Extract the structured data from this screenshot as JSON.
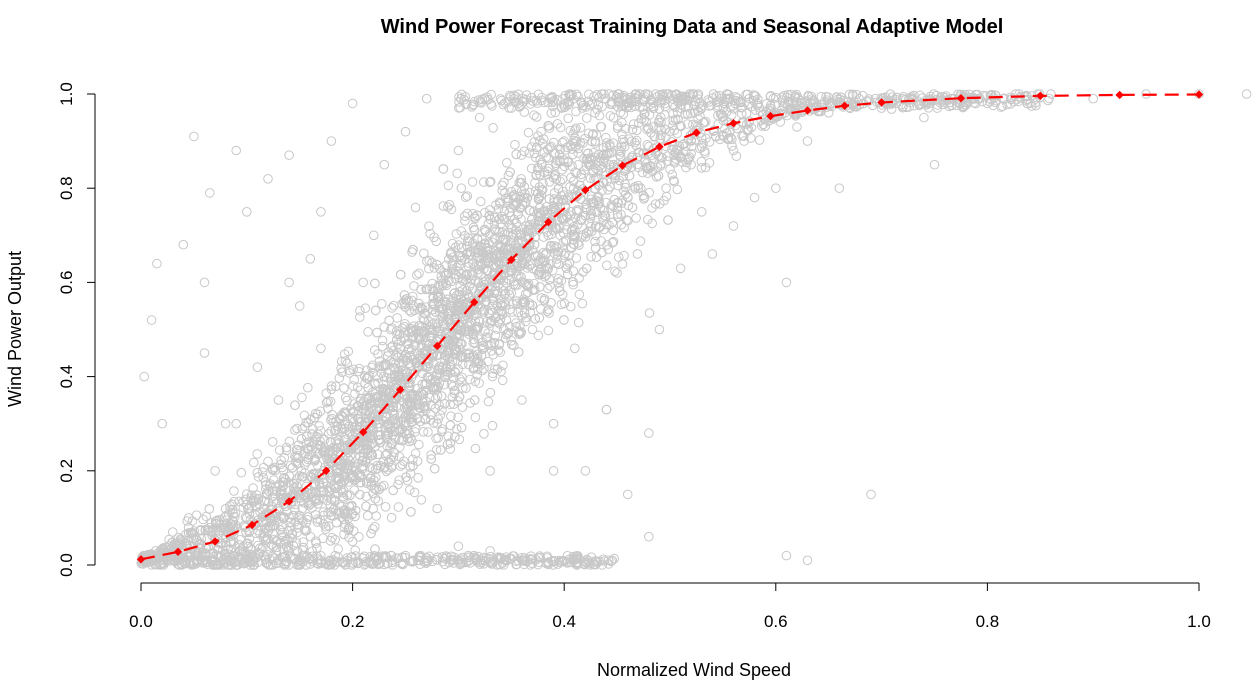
{
  "chart_data": {
    "type": "scatter",
    "title": "Wind Power Forecast Training Data and Seasonal Adaptive Model",
    "xlabel": "Normalized Wind Speed",
    "ylabel": "Wind Power Output",
    "xlim": [
      0,
      1.04
    ],
    "ylim": [
      0,
      1.0
    ],
    "x_ticks": [
      "0.0",
      "0.2",
      "0.4",
      "0.6",
      "0.8",
      "1.0"
    ],
    "y_ticks": [
      "0.0",
      "0.2",
      "0.4",
      "0.6",
      "0.8",
      "1.0"
    ],
    "grid": false,
    "legend": "none",
    "series": [
      {
        "kind": "scatter",
        "marker": "open-circle",
        "color": "#c8c8c8",
        "x": [
          0.005,
          0.003,
          0.01,
          0.02,
          0.03,
          0.04,
          0.045,
          0.05,
          0.06,
          0.065,
          0.07,
          0.08,
          0.09,
          0.1,
          0.1,
          0.11,
          0.12,
          0.13,
          0.14,
          0.15,
          0.16,
          0.17,
          0.18,
          0.19,
          0.2,
          0.21,
          0.22,
          0.22,
          0.23,
          0.24,
          0.25,
          0.26,
          0.27,
          0.28,
          0.29,
          0.3,
          0.31,
          0.32,
          0.33,
          0.34,
          0.35,
          0.36,
          0.37,
          0.38,
          0.39,
          0.4,
          0.41,
          0.42,
          0.43,
          0.44,
          0.45,
          0.46,
          0.47,
          0.48,
          0.49,
          0.5,
          0.51,
          0.52,
          0.53,
          0.54,
          0.55,
          0.56,
          0.57,
          0.58,
          0.6,
          0.61,
          0.62,
          0.63,
          0.65,
          0.66,
          0.69,
          0.7,
          0.72,
          0.74,
          0.75,
          0.78,
          0.8,
          0.83,
          0.86,
          0.9,
          0.95,
          1.0,
          1.045,
          0.2,
          0.25,
          0.33,
          0.36,
          0.48,
          0.61,
          0.63,
          0.17,
          0.14,
          0.28,
          0.3,
          0.39,
          0.44,
          0.52,
          0.56,
          0.5,
          0.09,
          0.12,
          0.06,
          0.015
        ],
        "y": [
          0.02,
          0.4,
          0.52,
          0.3,
          0.07,
          0.68,
          0.1,
          0.91,
          0.6,
          0.79,
          0.2,
          0.3,
          0.88,
          0.75,
          0.1,
          0.42,
          0.82,
          0.35,
          0.87,
          0.55,
          0.65,
          0.46,
          0.9,
          0.25,
          0.98,
          0.6,
          0.7,
          0.18,
          0.85,
          0.4,
          0.92,
          0.5,
          0.99,
          0.3,
          0.76,
          0.88,
          0.45,
          0.95,
          0.2,
          0.66,
          0.97,
          0.35,
          0.5,
          0.81,
          0.3,
          0.9,
          0.46,
          0.2,
          0.7,
          0.33,
          0.62,
          0.15,
          0.8,
          0.06,
          0.5,
          0.92,
          0.63,
          0.85,
          0.75,
          0.66,
          0.95,
          0.88,
          0.9,
          0.78,
          0.8,
          0.02,
          0.93,
          0.01,
          0.96,
          0.8,
          0.15,
          0.97,
          0.99,
          0.95,
          0.85,
          0.99,
          0.98,
          1.0,
          1.0,
          0.99,
          1.0,
          1.0,
          1.0,
          0.05,
          0.02,
          0.03,
          0.01,
          0.28,
          0.6,
          0.9,
          0.75,
          0.6,
          0.12,
          0.04,
          0.2,
          0.33,
          0.9,
          0.72,
          0.84,
          0.3,
          0.22,
          0.45,
          0.64
        ]
      },
      {
        "kind": "line",
        "style": "dashed",
        "marker": "diamond",
        "color": "#ff0000",
        "x": [
          0.0,
          0.035,
          0.07,
          0.105,
          0.14,
          0.175,
          0.21,
          0.245,
          0.28,
          0.315,
          0.35,
          0.385,
          0.42,
          0.455,
          0.49,
          0.525,
          0.56,
          0.595,
          0.63,
          0.665,
          0.7,
          0.775,
          0.85,
          0.925,
          1.0
        ],
        "y": [
          0.012,
          0.028,
          0.05,
          0.085,
          0.135,
          0.2,
          0.282,
          0.372,
          0.465,
          0.558,
          0.648,
          0.728,
          0.796,
          0.848,
          0.888,
          0.918,
          0.938,
          0.953,
          0.965,
          0.975,
          0.982,
          0.991,
          0.996,
          0.998,
          0.999
        ]
      }
    ]
  }
}
